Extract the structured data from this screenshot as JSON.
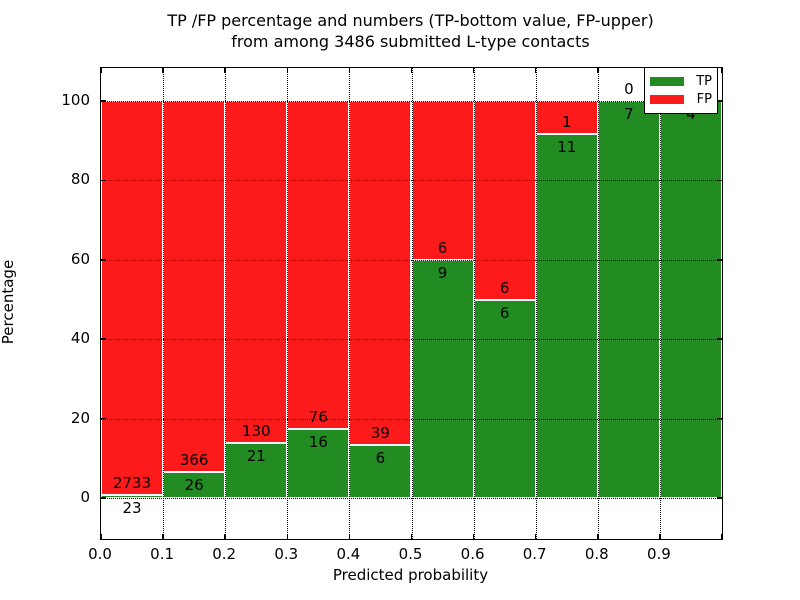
{
  "title": {
    "line1": "TP /FP percentage and numbers (TP-bottom value, FP-upper)",
    "line2": "from among 3486 submitted L-type contacts"
  },
  "axes": {
    "xlabel": "Predicted probability",
    "ylabel": "Percentage",
    "x_tick_labels": [
      "0.0",
      "0.1",
      "0.2",
      "0.3",
      "0.4",
      "0.5",
      "0.6",
      "0.7",
      "0.8",
      "0.9"
    ],
    "y_tick_values": [
      0,
      20,
      40,
      60,
      80,
      100
    ],
    "xlim": [
      0.0,
      1.0
    ],
    "ylim": [
      -10.3,
      108.3
    ],
    "grid": "dotted"
  },
  "legend": {
    "position": "upper right",
    "items": [
      {
        "label": "TP",
        "color": "#228b22"
      },
      {
        "label": "FP",
        "color": "#fd1a1a"
      }
    ]
  },
  "chart_data": {
    "type": "bar",
    "subtype": "stacked_percentage",
    "total_contacts": 3486,
    "colors": {
      "tp": "#228b22",
      "fp": "#fd1a1a"
    },
    "bins": [
      {
        "x_start": 0.0,
        "x_end": 0.1,
        "tp": 23,
        "fp": 2733,
        "tp_label": "23",
        "fp_label": "2733",
        "fp_label_visible": true
      },
      {
        "x_start": 0.1,
        "x_end": 0.2,
        "tp": 26,
        "fp": 366,
        "tp_label": "26",
        "fp_label": "366",
        "fp_label_visible": true
      },
      {
        "x_start": 0.2,
        "x_end": 0.3,
        "tp": 21,
        "fp": 130,
        "tp_label": "21",
        "fp_label": "130",
        "fp_label_visible": true
      },
      {
        "x_start": 0.3,
        "x_end": 0.4,
        "tp": 16,
        "fp": 76,
        "tp_label": "16",
        "fp_label": "76",
        "fp_label_visible": true
      },
      {
        "x_start": 0.4,
        "x_end": 0.5,
        "tp": 6,
        "fp": 39,
        "tp_label": "6",
        "fp_label": "39",
        "fp_label_visible": true
      },
      {
        "x_start": 0.5,
        "x_end": 0.6,
        "tp": 9,
        "fp": 6,
        "tp_label": "9",
        "fp_label": "6",
        "fp_label_visible": true
      },
      {
        "x_start": 0.6,
        "x_end": 0.7,
        "tp": 6,
        "fp": 6,
        "tp_label": "6",
        "fp_label": "6",
        "fp_label_visible": true
      },
      {
        "x_start": 0.7,
        "x_end": 0.8,
        "tp": 11,
        "fp": 1,
        "tp_label": "11",
        "fp_label": "1",
        "fp_label_visible": true
      },
      {
        "x_start": 0.8,
        "x_end": 0.9,
        "tp": 7,
        "fp": 0,
        "tp_label": "7",
        "fp_label": "0",
        "fp_label_visible": true
      },
      {
        "x_start": 0.9,
        "x_end": 1.0,
        "tp": 4,
        "fp": 0,
        "tp_label": "4",
        "fp_label": "",
        "fp_label_visible": false
      }
    ]
  }
}
